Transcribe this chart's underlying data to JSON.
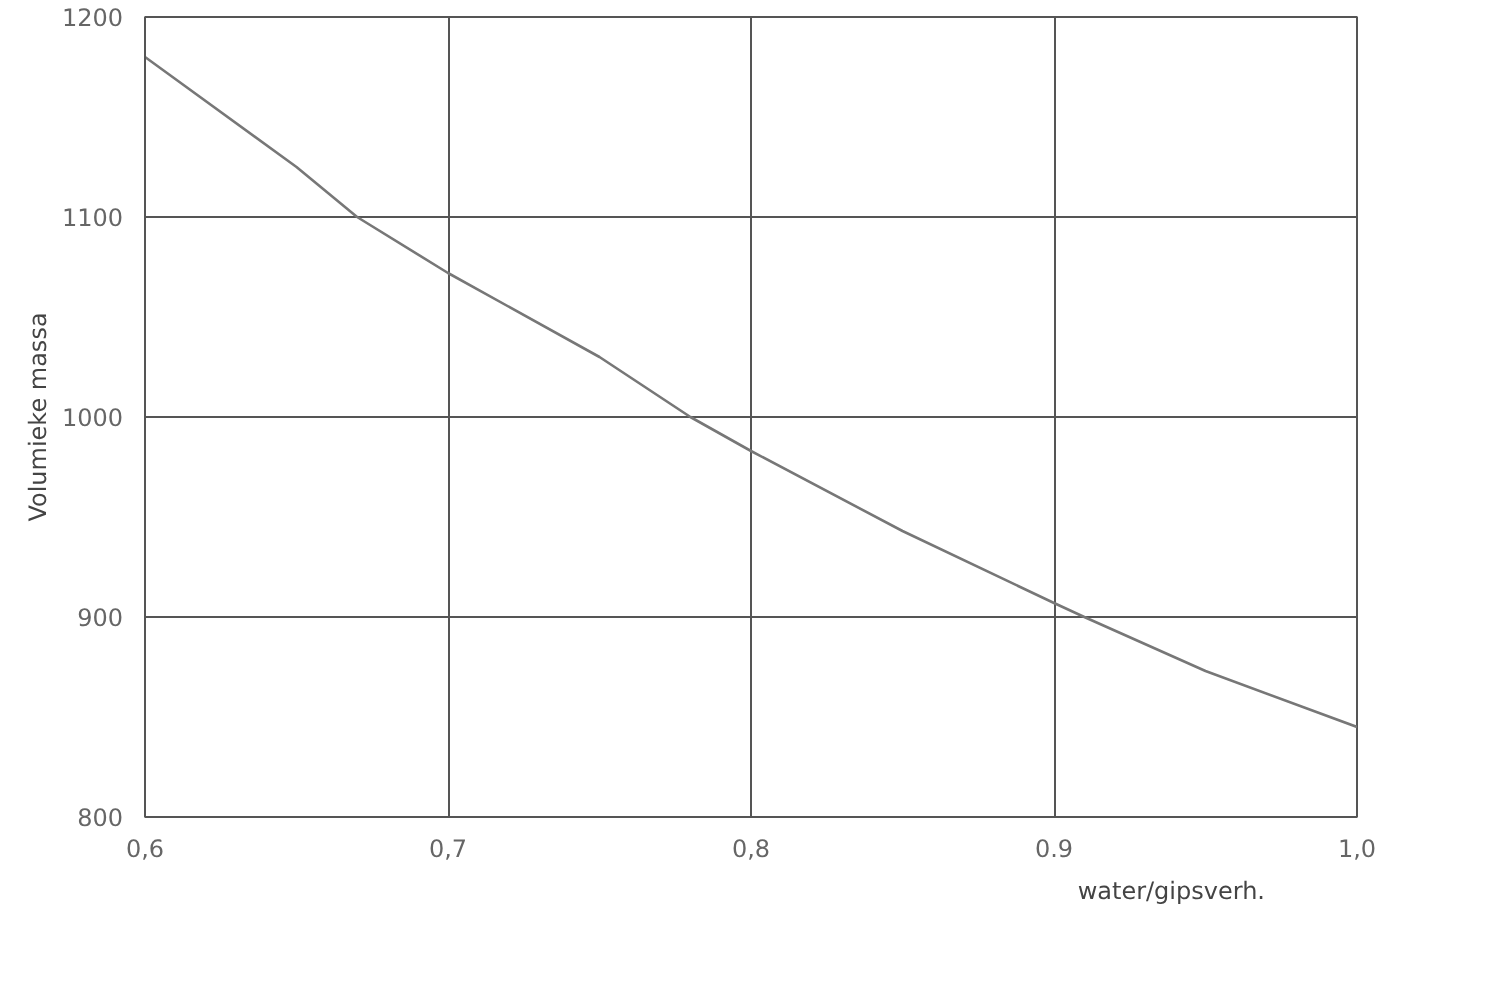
{
  "chart_data": {
    "type": "line",
    "xlabel": "water/gipsverh.",
    "ylabel": "Volumieke massa",
    "x": [
      0.6,
      0.65,
      0.67,
      0.7,
      0.75,
      0.78,
      0.8,
      0.85,
      0.9,
      0.91,
      0.95,
      1.0
    ],
    "series": [
      {
        "color": "#777777",
        "values": [
          1180,
          1125,
          1100,
          1072,
          1030,
          1000,
          983,
          943,
          907,
          900,
          873,
          845
        ]
      }
    ],
    "xlim": [
      0.6,
      1.0
    ],
    "ylim": [
      800,
      1200
    ],
    "xticks": [
      {
        "value": 0.6,
        "label": "0,6"
      },
      {
        "value": 0.7,
        "label": "0,7"
      },
      {
        "value": 0.8,
        "label": "0,8"
      },
      {
        "value": 0.9,
        "label": "0.9"
      },
      {
        "value": 1.0,
        "label": "1,0"
      }
    ],
    "yticks": [
      800,
      900,
      1000,
      1100,
      1200
    ],
    "grid": true,
    "marker": "none",
    "line_style": "solid"
  }
}
